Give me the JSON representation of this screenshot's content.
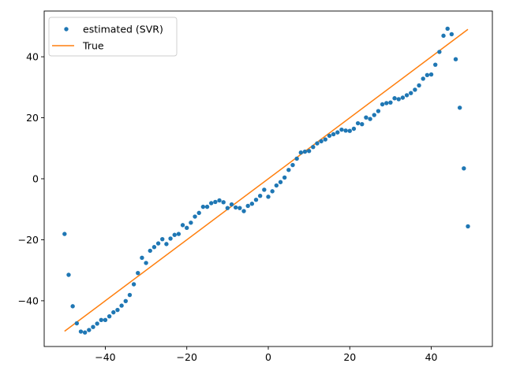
{
  "chart_data": {
    "type": "scatter",
    "title": "",
    "xlabel": "",
    "ylabel": "",
    "xlim": [
      -55,
      55
    ],
    "ylim": [
      -55,
      55
    ],
    "x_ticks": [
      -40,
      -20,
      0,
      20,
      40
    ],
    "y_ticks": [
      -40,
      -20,
      0,
      20,
      40
    ],
    "x_tick_labels": [
      "−40",
      "−20",
      "0",
      "20",
      "40"
    ],
    "y_tick_labels": [
      "−40",
      "−20",
      "0",
      "20",
      "40"
    ],
    "grid": false,
    "legend_position": "top-left",
    "series": [
      {
        "name": "estimated (SVR)",
        "kind": "scatter",
        "color": "#1f77b4",
        "points": [
          [
            -50,
            -18.1
          ],
          [
            -49,
            -31.5
          ],
          [
            -48,
            -41.8
          ],
          [
            -47,
            -47.4
          ],
          [
            -46,
            -50.1
          ],
          [
            -45,
            -50.4
          ],
          [
            -44,
            -49.6
          ],
          [
            -43,
            -48.6
          ],
          [
            -42,
            -47.5
          ],
          [
            -41,
            -46.3
          ],
          [
            -40,
            -46.3
          ],
          [
            -39,
            -45.1
          ],
          [
            -38,
            -43.8
          ],
          [
            -37,
            -43.0
          ],
          [
            -36,
            -41.6
          ],
          [
            -35,
            -40.1
          ],
          [
            -34,
            -38.1
          ],
          [
            -33,
            -34.6
          ],
          [
            -32,
            -30.9
          ],
          [
            -31,
            -25.9
          ],
          [
            -30,
            -27.6
          ],
          [
            -29,
            -23.6
          ],
          [
            -28,
            -22.4
          ],
          [
            -27,
            -21.2
          ],
          [
            -26,
            -19.8
          ],
          [
            -25,
            -21.4
          ],
          [
            -24,
            -19.6
          ],
          [
            -23,
            -18.4
          ],
          [
            -22,
            -18.1
          ],
          [
            -21,
            -15.2
          ],
          [
            -20,
            -16.1
          ],
          [
            -19,
            -14.4
          ],
          [
            -18,
            -12.4
          ],
          [
            -17,
            -11.2
          ],
          [
            -16,
            -9.2
          ],
          [
            -15,
            -9.2
          ],
          [
            -14,
            -8.0
          ],
          [
            -13,
            -7.6
          ],
          [
            -12,
            -7.1
          ],
          [
            -11,
            -7.7
          ],
          [
            -10,
            -9.6
          ],
          [
            -9,
            -8.4
          ],
          [
            -8,
            -9.4
          ],
          [
            -7,
            -9.6
          ],
          [
            -6,
            -10.6
          ],
          [
            -5,
            -8.9
          ],
          [
            -4,
            -8.2
          ],
          [
            -3,
            -6.9
          ],
          [
            -2,
            -5.6
          ],
          [
            -1,
            -3.6
          ],
          [
            0,
            -5.9
          ],
          [
            1,
            -4.1
          ],
          [
            2,
            -2.2
          ],
          [
            3,
            -1.1
          ],
          [
            4,
            0.4
          ],
          [
            5,
            2.9
          ],
          [
            6,
            4.5
          ],
          [
            7,
            6.6
          ],
          [
            8,
            8.6
          ],
          [
            9,
            8.9
          ],
          [
            10,
            9.1
          ],
          [
            11,
            10.4
          ],
          [
            12,
            11.6
          ],
          [
            13,
            12.3
          ],
          [
            14,
            12.9
          ],
          [
            15,
            14.1
          ],
          [
            16,
            14.6
          ],
          [
            17,
            15.2
          ],
          [
            18,
            16.1
          ],
          [
            19,
            15.8
          ],
          [
            20,
            15.7
          ],
          [
            21,
            16.4
          ],
          [
            22,
            18.2
          ],
          [
            23,
            17.9
          ],
          [
            24,
            20.1
          ],
          [
            25,
            19.6
          ],
          [
            26,
            20.9
          ],
          [
            27,
            22.2
          ],
          [
            28,
            24.4
          ],
          [
            29,
            24.8
          ],
          [
            30,
            25.0
          ],
          [
            31,
            26.4
          ],
          [
            32,
            26.1
          ],
          [
            33,
            26.6
          ],
          [
            34,
            27.4
          ],
          [
            35,
            28.1
          ],
          [
            36,
            29.2
          ],
          [
            37,
            30.6
          ],
          [
            38,
            32.8
          ],
          [
            39,
            34.0
          ],
          [
            40,
            34.2
          ],
          [
            41,
            37.4
          ],
          [
            42,
            41.6
          ],
          [
            43,
            46.9
          ],
          [
            44,
            49.2
          ],
          [
            45,
            47.4
          ],
          [
            46,
            39.2
          ],
          [
            47,
            23.3
          ],
          [
            48,
            3.4
          ],
          [
            49,
            -15.6
          ]
        ]
      },
      {
        "name": "True",
        "kind": "line",
        "color": "#ff7f0e",
        "points": [
          [
            -50,
            -50
          ],
          [
            49,
            49
          ]
        ]
      }
    ]
  }
}
